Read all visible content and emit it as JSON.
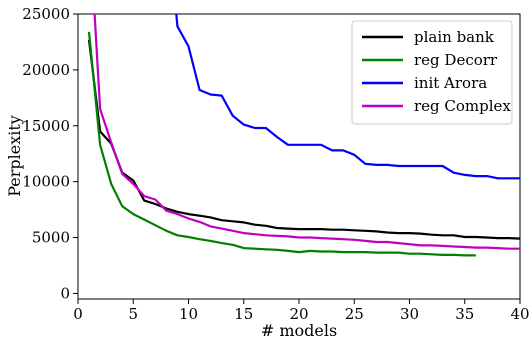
{
  "chart_data": {
    "type": "line",
    "xlabel": "# models",
    "ylabel": "Perplexity",
    "xlim": [
      0,
      40
    ],
    "ylim": [
      -500,
      25000
    ],
    "xticks": [
      0,
      5,
      10,
      15,
      20,
      25,
      30,
      35,
      40
    ],
    "yticks": [
      0,
      5000,
      10000,
      15000,
      20000,
      25000
    ],
    "grid": false,
    "legend_position": "top-right",
    "series": [
      {
        "name": "plain bank",
        "color": "#000000",
        "x": [
          1,
          2,
          3,
          4,
          5,
          6,
          7,
          8,
          9,
          10,
          11,
          12,
          13,
          14,
          15,
          16,
          17,
          18,
          19,
          20,
          21,
          22,
          23,
          24,
          25,
          26,
          27,
          28,
          29,
          30,
          31,
          32,
          33,
          34,
          35,
          36,
          37,
          38,
          39,
          40
        ],
        "values": [
          22700,
          14500,
          13400,
          10800,
          10100,
          8300,
          8000,
          7600,
          7300,
          7100,
          6950,
          6800,
          6550,
          6450,
          6350,
          6150,
          6050,
          5850,
          5800,
          5750,
          5750,
          5750,
          5700,
          5700,
          5650,
          5600,
          5550,
          5450,
          5400,
          5400,
          5350,
          5250,
          5200,
          5200,
          5050,
          5050,
          5000,
          4950,
          4950,
          4900
        ]
      },
      {
        "name": "reg Decorr",
        "color": "#008000",
        "x": [
          1,
          2,
          3,
          4,
          5,
          6,
          7,
          8,
          9,
          10,
          11,
          12,
          13,
          14,
          15,
          16,
          17,
          18,
          19,
          20,
          21,
          22,
          23,
          24,
          25,
          26,
          27,
          28,
          29,
          30,
          31,
          32,
          33,
          34,
          35,
          36
        ],
        "values": [
          23400,
          13300,
          9800,
          7800,
          7100,
          6600,
          6100,
          5600,
          5200,
          5050,
          4850,
          4700,
          4500,
          4350,
          4050,
          4000,
          3950,
          3900,
          3800,
          3700,
          3800,
          3750,
          3750,
          3700,
          3700,
          3700,
          3650,
          3650,
          3650,
          3550,
          3550,
          3500,
          3450,
          3450,
          3400,
          3400
        ]
      },
      {
        "name": "init Arora",
        "color": "#0000ff",
        "x": [
          8.9,
          9,
          10,
          11,
          12,
          13,
          14,
          15,
          16,
          17,
          18,
          19,
          20,
          21,
          22,
          23,
          24,
          25,
          26,
          27,
          28,
          29,
          30,
          31,
          32,
          33,
          34,
          35,
          36,
          37,
          38,
          39,
          40
        ],
        "values": [
          25000,
          23900,
          22100,
          18200,
          17800,
          17700,
          15900,
          15100,
          14800,
          14800,
          14000,
          13300,
          13300,
          13300,
          13300,
          12800,
          12800,
          12400,
          11600,
          11500,
          11500,
          11400,
          11400,
          11400,
          11400,
          11400,
          10800,
          10600,
          10500,
          10500,
          10300,
          10300,
          10300
        ]
      },
      {
        "name": "reg Complex",
        "color": "#bf00bf",
        "x": [
          1.5,
          2,
          3,
          4,
          5,
          6,
          7,
          8,
          9,
          10,
          11,
          12,
          13,
          14,
          15,
          16,
          17,
          18,
          19,
          20,
          21,
          22,
          23,
          24,
          25,
          26,
          27,
          28,
          29,
          30,
          31,
          32,
          33,
          34,
          35,
          36,
          37,
          38,
          39,
          40
        ],
        "values": [
          25000,
          16500,
          13500,
          10700,
          9800,
          8700,
          8400,
          7400,
          7100,
          6700,
          6400,
          6000,
          5800,
          5600,
          5400,
          5300,
          5200,
          5150,
          5100,
          5000,
          5000,
          4950,
          4900,
          4850,
          4800,
          4700,
          4600,
          4600,
          4500,
          4400,
          4300,
          4300,
          4250,
          4200,
          4150,
          4100,
          4100,
          4050,
          4000,
          4000
        ]
      }
    ]
  }
}
